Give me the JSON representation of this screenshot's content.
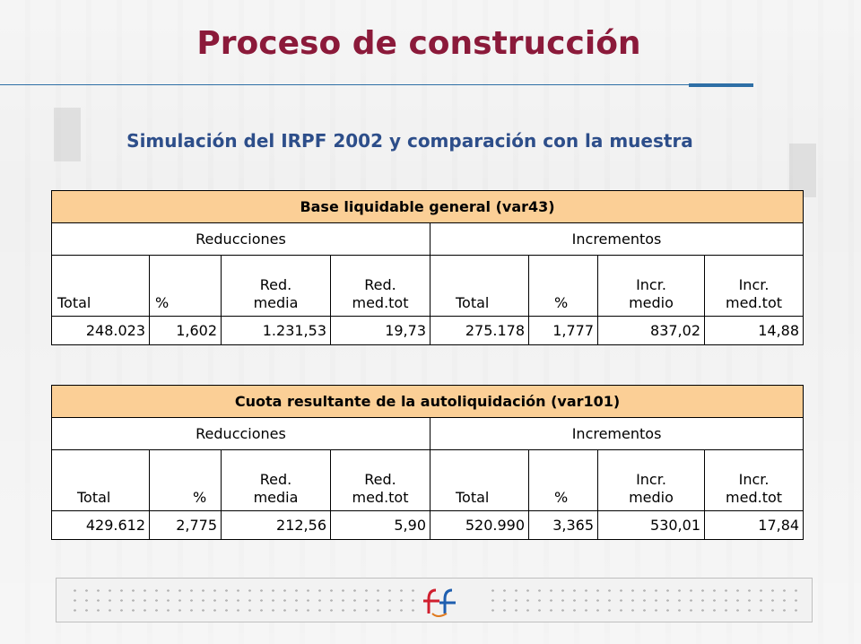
{
  "title": "Proceso de construcción",
  "subtitle": "Simulación del IRPF 2002 y comparación con la muestra",
  "tables": [
    {
      "heading": "Base liquidable general (var43)",
      "groups": [
        "Reducciones",
        "Incrementos"
      ],
      "columns": [
        "Total",
        "%",
        "Red.\nmedia",
        "Red.\nmed.tot",
        "Total",
        "%",
        "Incr.\nmedio",
        "Incr.\nmed.tot"
      ],
      "values": [
        "248.023",
        "1,602",
        "1.231,53",
        "19,73",
        "275.178",
        "1,777",
        "837,02",
        "14,88"
      ]
    },
    {
      "heading": "Cuota resultante de la autoliquidación (var101)",
      "groups": [
        "Reducciones",
        "Incrementos"
      ],
      "columns": [
        "Total",
        "%",
        "Red.\nmedia",
        "Red.\nmed.tot",
        "Total",
        "%",
        "Incr.\nmedio",
        "Incr.\nmed.tot"
      ],
      "values": [
        "429.612",
        "2,775",
        "212,56",
        "5,90",
        "520.990",
        "3,365",
        "530,01",
        "17,84"
      ]
    }
  ],
  "colors": {
    "title": "#8b1a3a",
    "subtitle": "#2d4e8a",
    "header_fill": "#fbcf96",
    "rule": "#2e6fa6"
  },
  "icons": [
    "building-background-image",
    "logo-icon"
  ]
}
